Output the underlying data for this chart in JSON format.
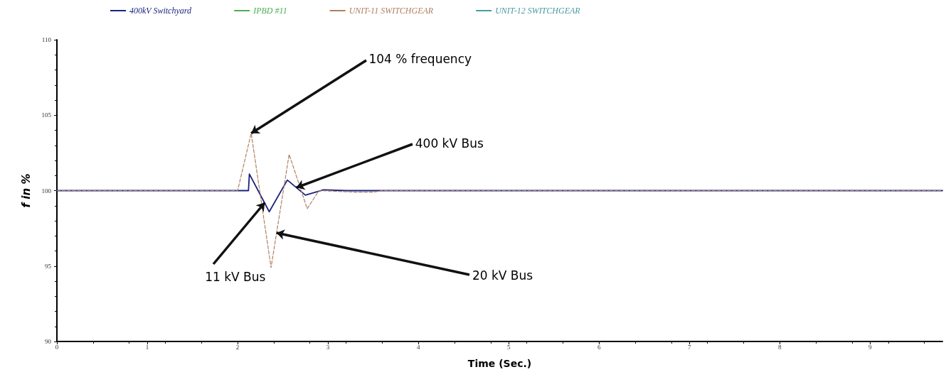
{
  "chart_data": {
    "type": "line",
    "xlabel": "Time (Sec.)",
    "ylabel": "f in %",
    "xlim": [
      0,
      9.8
    ],
    "ylim": [
      90,
      110
    ],
    "xticks": [
      0,
      1,
      2,
      3,
      4,
      5,
      6,
      7,
      8,
      9
    ],
    "yticks": [
      90,
      95,
      100,
      105,
      110
    ],
    "grid": false,
    "legend": "top left",
    "marker": "none",
    "series": [
      {
        "name": "400kV Switchyard",
        "color": "#1a237e",
        "line_style": "solid",
        "x": [
          0,
          2.12,
          2.13,
          2.35,
          2.55,
          2.75,
          2.95,
          3.2,
          9.8
        ],
        "values": [
          100,
          100,
          101.1,
          98.6,
          100.7,
          99.7,
          100.05,
          100,
          100
        ]
      },
      {
        "name": "IPBD #11",
        "color": "#4caf50",
        "line_style": "solid"
      },
      {
        "name": "UNIT-11 SWITCHGEAR",
        "color": "#b08060",
        "line_style": "dashed",
        "x": [
          0,
          2.0,
          2.15,
          2.37,
          2.57,
          2.77,
          2.9,
          3.3,
          3.5,
          3.6,
          9.8
        ],
        "values": [
          100,
          100,
          103.8,
          94.9,
          102.4,
          98.8,
          100,
          99.9,
          99.9,
          100,
          100
        ]
      },
      {
        "name": "UNIT-12 SWITCHGEAR",
        "color": "#4a9aa0",
        "line_style": "solid"
      }
    ],
    "annotations": [
      {
        "text": "104 % frequency",
        "x": 2.15,
        "y": 103.8
      },
      {
        "text": "400 kV Bus",
        "x": 2.65,
        "y": 100.2
      },
      {
        "text": "20 kV Bus",
        "x": 2.43,
        "y": 97.2
      },
      {
        "text": "11 kV Bus",
        "x": 2.3,
        "y": 99.2
      }
    ]
  }
}
